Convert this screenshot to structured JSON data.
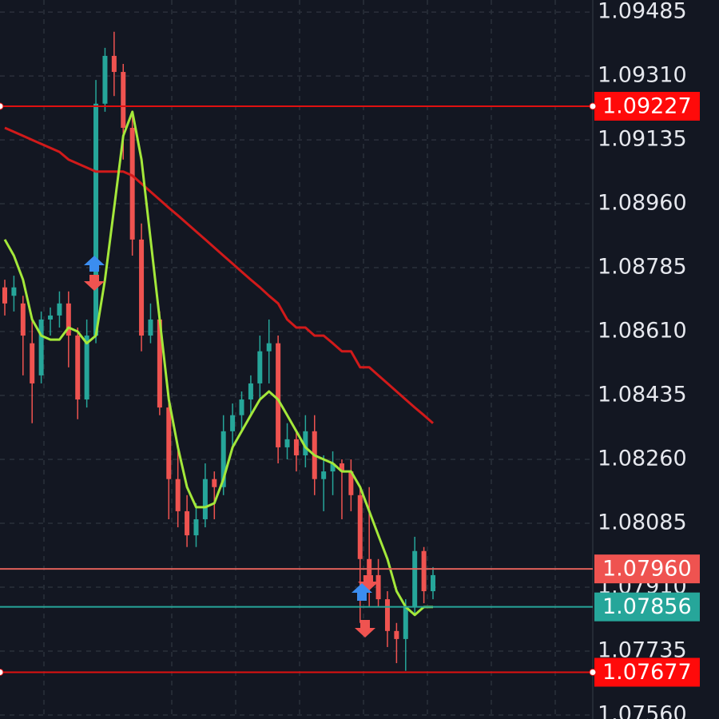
{
  "chart_data": {
    "type": "candlestick",
    "up_color": "#26a69a",
    "down_color": "#ef5350",
    "grid": true,
    "ylim": [
      1.07549,
      1.09518
    ],
    "yticks": [
      1.09485,
      {
        "value": 1.0931,
        "label": "1.09310"
      },
      1.09135,
      {
        "value": 1.0896,
        "label": "1.08960"
      },
      1.08785,
      {
        "value": 1.0861,
        "label": "1.08610"
      },
      1.08435,
      {
        "value": 1.0826,
        "label": "1.08260"
      },
      1.08085,
      {
        "value": 1.0791,
        "label": "1.07910"
      },
      1.07735,
      {
        "value": 1.0756,
        "label": "1.07560"
      }
    ],
    "open": [
      1.08731,
      1.08708,
      1.08687,
      1.08578,
      1.0849,
      1.08643,
      1.08654,
      1.08687,
      1.08599,
      1.08424,
      1.08599,
      1.09234,
      1.09365,
      1.09321,
      1.09168,
      1.08862,
      1.08599,
      1.08643,
      1.08402,
      1.08206,
      1.08118,
      1.08052,
      1.08096,
      1.08206,
      1.08184,
      1.08337,
      1.08381,
      1.08424,
      1.08468,
      1.08556,
      1.08578,
      1.08293,
      1.08315,
      1.08271,
      1.08337,
      1.08206,
      1.08227,
      1.08249,
      1.08227,
      1.08162,
      1.07987,
      1.07943,
      1.07877,
      1.0779,
      1.07768,
      1.07856,
      1.08009,
      1.07899
    ],
    "high": [
      1.08752,
      1.08763,
      1.08708,
      1.08643,
      1.08665,
      1.08676,
      1.0872,
      1.0872,
      1.08621,
      1.08643,
      1.09299,
      1.09387,
      1.09431,
      1.09343,
      1.09212,
      1.08906,
      1.08687,
      1.08665,
      1.08424,
      1.08293,
      1.08162,
      1.0814,
      1.08249,
      1.08227,
      1.08381,
      1.08413,
      1.08446,
      1.0849,
      1.08599,
      1.08643,
      1.08599,
      1.08359,
      1.08337,
      1.08381,
      1.08381,
      1.08271,
      1.08282,
      1.0826,
      1.0826,
      1.08184,
      1.08184,
      1.07987,
      1.07899,
      1.07812,
      1.07877,
      1.08048,
      1.0802,
      1.07965
    ],
    "low": [
      1.08654,
      1.08665,
      1.0849,
      1.08359,
      1.08468,
      1.08599,
      1.08621,
      1.08512,
      1.0837,
      1.08402,
      1.08578,
      1.09212,
      1.09255,
      1.09081,
      1.08818,
      1.08556,
      1.08578,
      1.08381,
      1.08096,
      1.08074,
      1.0802,
      1.0802,
      1.08074,
      1.08096,
      1.08162,
      1.08293,
      1.08337,
      1.08381,
      1.08424,
      1.08468,
      1.08249,
      1.0826,
      1.08227,
      1.08238,
      1.08162,
      1.08118,
      1.08162,
      1.08096,
      1.08118,
      1.07812,
      1.07856,
      1.07856,
      1.07746,
      1.07702,
      1.07681,
      1.07834,
      1.07866,
      1.07877
    ],
    "close": [
      1.08687,
      1.08731,
      1.08599,
      1.08468,
      1.08643,
      1.08654,
      1.08687,
      1.08599,
      1.08424,
      1.08599,
      1.09234,
      1.09365,
      1.09321,
      1.09168,
      1.08862,
      1.08599,
      1.08643,
      1.08402,
      1.08206,
      1.08118,
      1.08052,
      1.08096,
      1.08206,
      1.08184,
      1.08337,
      1.08381,
      1.08424,
      1.08468,
      1.08556,
      1.08578,
      1.08293,
      1.08315,
      1.08271,
      1.08337,
      1.08206,
      1.08227,
      1.08249,
      1.08227,
      1.08162,
      1.07987,
      1.07943,
      1.07877,
      1.0779,
      1.07768,
      1.07856,
      1.08009,
      1.07899,
      1.07943
    ],
    "series": [
      {
        "color": "#d11a1a",
        "values": [
          1.09168,
          1.09157,
          1.09146,
          1.09135,
          1.09124,
          1.09113,
          1.09102,
          1.09081,
          1.0907,
          1.09059,
          1.09048,
          1.09048,
          1.09048,
          1.09048,
          1.09037,
          1.09015,
          1.08993,
          1.08971,
          1.08949,
          1.08928,
          1.08906,
          1.08884,
          1.08862,
          1.0884,
          1.08818,
          1.08796,
          1.08774,
          1.08752,
          1.08731,
          1.08708,
          1.08687,
          1.08643,
          1.08621,
          1.08621,
          1.08599,
          1.08599,
          1.08578,
          1.08556,
          1.08556,
          1.08512,
          1.08512,
          1.0849,
          1.08468,
          1.08446,
          1.08424,
          1.08402,
          1.08381,
          1.08359
        ]
      },
      {
        "color": "#a4e83a",
        "values": [
          1.08862,
          1.08818,
          1.08752,
          1.08643,
          1.08599,
          1.08588,
          1.08588,
          1.08621,
          1.0861,
          1.08578,
          1.08599,
          1.08752,
          1.08949,
          1.09146,
          1.09212,
          1.09081,
          1.08862,
          1.08643,
          1.08424,
          1.08293,
          1.08184,
          1.08129,
          1.08129,
          1.0814,
          1.08206,
          1.08293,
          1.08337,
          1.08381,
          1.08424,
          1.08446,
          1.08424,
          1.08381,
          1.08337,
          1.08293,
          1.08271,
          1.0826,
          1.08249,
          1.08227,
          1.08227,
          1.08184,
          1.08118,
          1.08052,
          1.07987,
          1.07899,
          1.07856,
          1.07834,
          1.07856,
          1.07856
        ]
      }
    ],
    "price_lines": [
      {
        "value": 1.09227,
        "color": "#e01010",
        "box": "#ff0a0a"
      },
      {
        "value": 1.0796,
        "label": "1.07960",
        "color": "#e0605a",
        "box": "#ef5350"
      },
      {
        "value": 1.07856,
        "color": "#26a69a",
        "box": "#26a69a"
      },
      {
        "value": 1.07677,
        "color": "#e01010",
        "box": "#ff0a0a"
      }
    ]
  }
}
